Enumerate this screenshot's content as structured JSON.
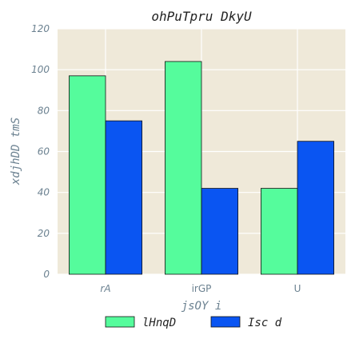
{
  "chart_data": {
    "type": "bar",
    "title": "ohPuTpru DkyU",
    "xlabel": "jsOY i",
    "ylabel": "xdjhDD tmS",
    "categories": [
      "rA",
      "irGP",
      "U"
    ],
    "series": [
      {
        "name": "lHnqD",
        "values": [
          97,
          104,
          42
        ],
        "color": "#55fc9c"
      },
      {
        "name": "Isc d",
        "values": [
          75,
          42,
          65
        ],
        "color": "#0a55f2"
      }
    ],
    "ylim": [
      0,
      120
    ],
    "yticks": [
      0,
      20,
      40,
      60,
      80,
      100,
      120
    ],
    "grid": true,
    "legend_position": "bottom-center",
    "background_color": "#efe9d9"
  }
}
